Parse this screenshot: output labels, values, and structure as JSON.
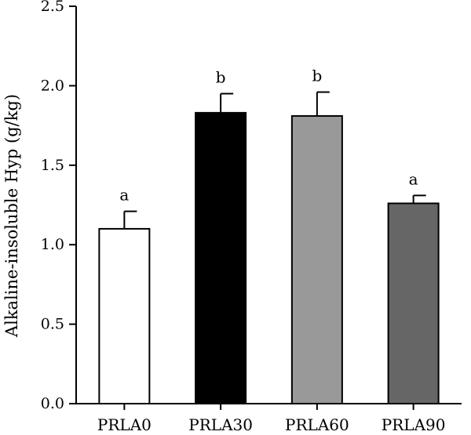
{
  "chart_data": {
    "type": "bar",
    "title": "",
    "xlabel": "",
    "ylabel": "Alkaline-insoluble Hyp (g/kg)",
    "categories": [
      "PRLA0",
      "PRLA30",
      "PRLA60",
      "PRLA90"
    ],
    "values": [
      1.1,
      1.83,
      1.81,
      1.26
    ],
    "errors": [
      0.11,
      0.12,
      0.15,
      0.05
    ],
    "significance_labels": [
      "a",
      "b",
      "b",
      "a"
    ],
    "bar_colors": [
      "#ffffff",
      "#000000",
      "#999999",
      "#666666"
    ],
    "ylim": [
      0,
      2.5
    ],
    "yticks": [
      0.0,
      0.5,
      1.0,
      1.5,
      2.0,
      2.5
    ],
    "ytick_labels": [
      "0.0",
      "0.5",
      "1.0",
      "1.5",
      "2.0",
      "2.5"
    ],
    "grid": false,
    "legend": "none"
  }
}
